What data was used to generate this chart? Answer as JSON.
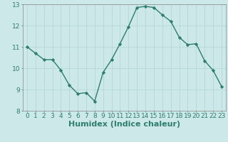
{
  "x": [
    0,
    1,
    2,
    3,
    4,
    5,
    6,
    7,
    8,
    9,
    10,
    11,
    12,
    13,
    14,
    15,
    16,
    17,
    18,
    19,
    20,
    21,
    22,
    23
  ],
  "y": [
    11.0,
    10.7,
    10.4,
    10.4,
    9.9,
    9.2,
    8.8,
    8.85,
    8.45,
    9.8,
    10.4,
    11.15,
    11.95,
    12.85,
    12.9,
    12.85,
    12.5,
    12.2,
    11.45,
    11.1,
    11.15,
    10.35,
    9.9,
    9.15
  ],
  "line_color": "#2e7d6e",
  "marker": "D",
  "marker_size": 2.2,
  "bg_color": "#cce8e8",
  "grid_color": "#b0d4d4",
  "xlabel": "Humidex (Indice chaleur)",
  "xlim": [
    -0.5,
    23.5
  ],
  "ylim": [
    8,
    13
  ],
  "yticks": [
    8,
    9,
    10,
    11,
    12,
    13
  ],
  "xticks": [
    0,
    1,
    2,
    3,
    4,
    5,
    6,
    7,
    8,
    9,
    10,
    11,
    12,
    13,
    14,
    15,
    16,
    17,
    18,
    19,
    20,
    21,
    22,
    23
  ],
  "tick_label_fontsize": 6.5,
  "xlabel_fontsize": 8,
  "tick_color": "#2e7d6e",
  "axis_color": "#2e7d6e",
  "spine_color": "#888888"
}
